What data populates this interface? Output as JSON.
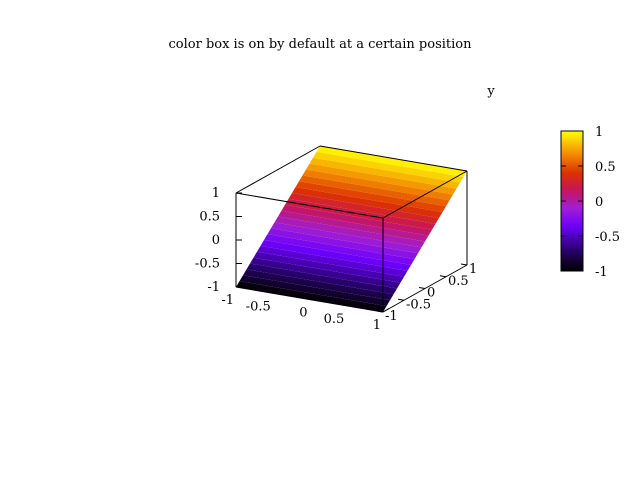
{
  "chart_data": {
    "type": "surface3d",
    "title": "color box is on by default at a certain position",
    "xlabel": "",
    "ylabel": "y",
    "zlabel": "",
    "xlim": [
      -1,
      1
    ],
    "ylim": [
      -1,
      1
    ],
    "zlim": [
      -1,
      1
    ],
    "x_ticks": [
      "-1",
      "-0.5",
      "0",
      "0.5",
      "1"
    ],
    "y_ticks": [
      "-1",
      "-0.5",
      "0",
      "0.5",
      "1"
    ],
    "z_ticks": [
      "-1",
      "-0.5",
      "0",
      "0.5",
      "1"
    ],
    "surface": "z = y",
    "colorbar": {
      "ticks": [
        "-1",
        "-0.5",
        "0",
        "0.5",
        "1"
      ],
      "range": [
        -1,
        1
      ],
      "palette": "black-blue-purple-red-orange-yellow"
    },
    "grid": false,
    "legend": "none"
  }
}
